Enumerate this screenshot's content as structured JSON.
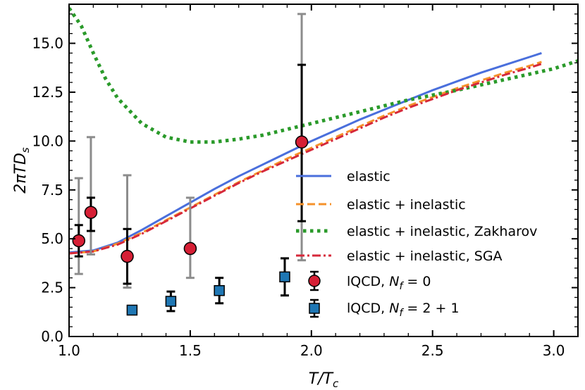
{
  "chart_data": {
    "type": "line",
    "xlabel_main": "T/T",
    "xlabel_sub": "c",
    "ylabel_main": "2πTD",
    "ylabel_sub": "s",
    "xlim": [
      1.0,
      3.1
    ],
    "ylim": [
      0.0,
      17.0
    ],
    "xticks": [
      1.0,
      1.5,
      2.0,
      2.5,
      3.0
    ],
    "xtick_labels": [
      "1.0",
      "1.5",
      "2.0",
      "2.5",
      "3.0"
    ],
    "yticks": [
      0.0,
      2.5,
      5.0,
      7.5,
      10.0,
      12.5,
      15.0
    ],
    "ytick_labels": [
      "0.0",
      "2.5",
      "5.0",
      "7.5",
      "10.0",
      "12.5",
      "15.0"
    ],
    "legend_position": "center-right",
    "series": [
      {
        "name": "elastic",
        "style": "solid",
        "color": "#4a6fdc",
        "x": [
          1.0,
          1.1,
          1.2,
          1.3,
          1.4,
          1.5,
          1.6,
          1.7,
          1.8,
          1.9,
          2.0,
          2.1,
          2.2,
          2.3,
          2.4,
          2.5,
          2.6,
          2.7,
          2.8,
          2.9,
          2.95
        ],
        "y": [
          4.3,
          4.4,
          4.8,
          5.45,
          6.15,
          6.85,
          7.55,
          8.2,
          8.8,
          9.4,
          10.0,
          10.55,
          11.1,
          11.6,
          12.1,
          12.6,
          13.05,
          13.5,
          13.9,
          14.3,
          14.5
        ]
      },
      {
        "name": "elastic + inelastic",
        "style": "dashed",
        "color": "#f5922b",
        "x": [
          1.0,
          1.1,
          1.2,
          1.3,
          1.4,
          1.5,
          1.6,
          1.7,
          1.8,
          1.9,
          2.0,
          2.1,
          2.2,
          2.3,
          2.4,
          2.5,
          2.6,
          2.7,
          2.8,
          2.9,
          2.95
        ],
        "y": [
          4.25,
          4.35,
          4.75,
          5.3,
          5.95,
          6.6,
          7.25,
          7.9,
          8.5,
          9.1,
          9.65,
          10.2,
          10.75,
          11.3,
          11.8,
          12.25,
          12.7,
          13.1,
          13.5,
          13.85,
          14.05
        ]
      },
      {
        "name": "elastic + inelastic, Zakharov",
        "style": "dotted",
        "color": "#2a9a2a",
        "x": [
          1.0,
          1.05,
          1.1,
          1.15,
          1.2,
          1.3,
          1.4,
          1.5,
          1.6,
          1.7,
          1.8,
          1.9,
          2.0,
          2.2,
          2.4,
          2.6,
          2.8,
          3.0,
          3.1
        ],
        "y": [
          16.8,
          15.9,
          14.5,
          13.2,
          12.2,
          10.9,
          10.2,
          9.95,
          9.95,
          10.1,
          10.3,
          10.6,
          10.9,
          11.5,
          12.1,
          12.6,
          13.15,
          13.7,
          14.1
        ]
      },
      {
        "name": "elastic + inelastic, SGA",
        "style": "dashdot",
        "color": "#d6283a",
        "x": [
          1.0,
          1.1,
          1.2,
          1.3,
          1.4,
          1.5,
          1.6,
          1.7,
          1.8,
          1.9,
          2.0,
          2.1,
          2.2,
          2.3,
          2.4,
          2.5,
          2.6,
          2.7,
          2.8,
          2.9,
          2.95
        ],
        "y": [
          4.25,
          4.35,
          4.7,
          5.25,
          5.9,
          6.55,
          7.2,
          7.85,
          8.45,
          9.0,
          9.55,
          10.1,
          10.65,
          11.2,
          11.7,
          12.15,
          12.6,
          13.0,
          13.4,
          13.75,
          13.95
        ]
      }
    ],
    "scatter": [
      {
        "name": "lQCD, ",
        "name_var": "N",
        "name_sub": "f",
        "name_value": " = 0",
        "marker": "circle",
        "color": "#d61f35",
        "points": [
          {
            "x": 1.04,
            "y": 4.9,
            "err_grey": [
              3.2,
              8.1
            ],
            "err_black": [
              4.1,
              5.7
            ]
          },
          {
            "x": 1.09,
            "y": 6.35,
            "err_grey": [
              4.2,
              10.2
            ],
            "err_black": [
              5.4,
              7.1
            ]
          },
          {
            "x": 1.24,
            "y": 4.1,
            "err_grey": [
              2.5,
              8.25
            ],
            "err_black": [
              2.7,
              5.5
            ]
          },
          {
            "x": 1.5,
            "y": 4.5,
            "err_grey": [
              3.0,
              7.1
            ],
            "err_black": null
          },
          {
            "x": 1.96,
            "y": 9.95,
            "err_grey": [
              3.9,
              16.5
            ],
            "err_black": [
              5.9,
              13.9
            ]
          }
        ]
      },
      {
        "name": "lQCD, ",
        "name_var": "N",
        "name_sub": "f",
        "name_value": " = 2 + 1",
        "marker": "square",
        "color": "#1f77b4",
        "points": [
          {
            "x": 1.26,
            "y": 1.35,
            "err_black": [
              1.15,
              1.55
            ]
          },
          {
            "x": 1.42,
            "y": 1.8,
            "err_black": [
              1.3,
              2.3
            ]
          },
          {
            "x": 1.62,
            "y": 2.35,
            "err_black": [
              1.7,
              3.0
            ]
          },
          {
            "x": 1.89,
            "y": 3.05,
            "err_black": [
              2.1,
              4.0
            ]
          }
        ]
      }
    ]
  }
}
